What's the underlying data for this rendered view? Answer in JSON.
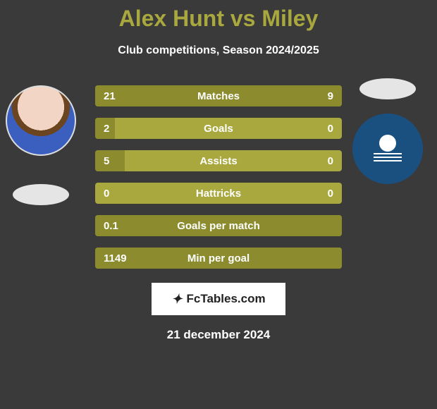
{
  "header": {
    "title": "Alex Hunt vs Miley",
    "subtitle": "Club competitions, Season 2024/2025",
    "title_color": "#a8a83e",
    "subtitle_color": "#ffffff",
    "title_fontsize": 32,
    "subtitle_fontsize": 16
  },
  "players": {
    "left": {
      "name": "Alex Hunt",
      "has_photo": true
    },
    "right": {
      "name": "Miley",
      "club_logo_bg": "#1a5080"
    }
  },
  "stats": {
    "bar_color": "#a8a83e",
    "bar_fill_color": "#8c8c2e",
    "text_color": "#ffffff",
    "rows": [
      {
        "label": "Matches",
        "left_value": "21",
        "right_value": "9",
        "left_pct": 67,
        "right_pct": 33
      },
      {
        "label": "Goals",
        "left_value": "2",
        "right_value": "0",
        "left_pct": 8,
        "right_pct": 0
      },
      {
        "label": "Assists",
        "left_value": "5",
        "right_value": "0",
        "left_pct": 12,
        "right_pct": 0
      },
      {
        "label": "Hattricks",
        "left_value": "0",
        "right_value": "0",
        "left_pct": 0,
        "right_pct": 0
      },
      {
        "label": "Goals per match",
        "left_value": "0.1",
        "right_value": "",
        "left_pct": 100,
        "right_pct": 0
      },
      {
        "label": "Min per goal",
        "left_value": "1149",
        "right_value": "",
        "left_pct": 100,
        "right_pct": 0
      }
    ]
  },
  "watermark": {
    "text": "FcTables.com",
    "icon": "⚽"
  },
  "footer": {
    "date": "21 december 2024",
    "date_color": "#ffffff",
    "date_fontsize": 17
  }
}
